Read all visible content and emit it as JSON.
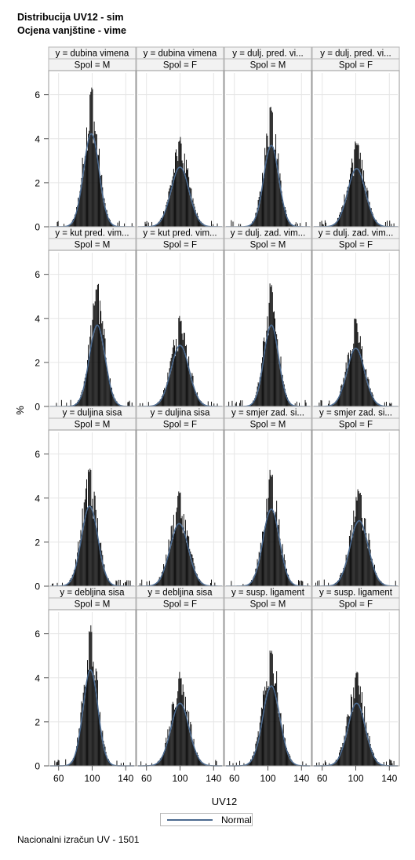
{
  "title": "Distribucija UV12 - sim",
  "subtitle": "Ocjena vanjštine - vime",
  "footnote": "Nacionalni izračun UV - 1501",
  "colors": {
    "bar": "#000000",
    "curve": "#4c6a8f",
    "header_bg": "#f2f2f2",
    "frame": "#9a9a9a",
    "grid": "#e6e6e6"
  },
  "chart_data": {
    "type": "histogram-panel",
    "xlabel": "UV12",
    "ylabel": "%",
    "xlim": [
      50,
      150
    ],
    "ylim": [
      0,
      6.7
    ],
    "xticks": [
      60,
      100,
      140
    ],
    "yticks": [
      0,
      2,
      4,
      6
    ],
    "grid": true,
    "legend": {
      "entries": [
        "Normal"
      ],
      "placement": "bottom"
    },
    "column_headers": [
      "Spol = M",
      "Spol = F",
      "Spol = M",
      "Spol = F"
    ],
    "panels": [
      {
        "row": 0,
        "col": 0,
        "header": "y = dubina vimena",
        "sex": "M",
        "mean": 99,
        "sd": 9.2,
        "peak": 6.4
      },
      {
        "row": 0,
        "col": 1,
        "header": "y = dubina vimena",
        "sex": "F",
        "mean": 100,
        "sd": 10.8,
        "peak": 4.1
      },
      {
        "row": 0,
        "col": 2,
        "header": "y = dulj. pred. vi...",
        "sex": "M",
        "mean": 104,
        "sd": 9.0,
        "peak": 5.6
      },
      {
        "row": 0,
        "col": 3,
        "header": "y = dulj. pred. vi...",
        "sex": "F",
        "mean": 101,
        "sd": 10.6,
        "peak": 4.0
      },
      {
        "row": 1,
        "col": 0,
        "header": "y = kut pred. vim...",
        "sex": "M",
        "mean": 106,
        "sd": 9.4,
        "peak": 5.6
      },
      {
        "row": 1,
        "col": 1,
        "header": "y = kut pred. vim...",
        "sex": "F",
        "mean": 100,
        "sd": 10.8,
        "peak": 4.2
      },
      {
        "row": 1,
        "col": 2,
        "header": "y = dulj. zad. vim...",
        "sex": "M",
        "mean": 104,
        "sd": 8.8,
        "peak": 5.6
      },
      {
        "row": 1,
        "col": 3,
        "header": "y = dulj. zad. vim...",
        "sex": "F",
        "mean": 100,
        "sd": 10.5,
        "peak": 4.0
      },
      {
        "row": 2,
        "col": 0,
        "header": "y = duljina sisa",
        "sex": "M",
        "mean": 97,
        "sd": 9.8,
        "peak": 5.5
      },
      {
        "row": 2,
        "col": 1,
        "header": "y = duljina sisa",
        "sex": "F",
        "mean": 99,
        "sd": 11.0,
        "peak": 4.3
      },
      {
        "row": 2,
        "col": 2,
        "header": "y = smjer zad. si...",
        "sex": "M",
        "mean": 104,
        "sd": 9.8,
        "peak": 5.3
      },
      {
        "row": 2,
        "col": 3,
        "header": "y = smjer zad. si...",
        "sex": "F",
        "mean": 104,
        "sd": 10.9,
        "peak": 4.5
      },
      {
        "row": 3,
        "col": 0,
        "header": "y = debljina sisa",
        "sex": "M",
        "mean": 98,
        "sd": 8.8,
        "peak": 6.6
      },
      {
        "row": 3,
        "col": 1,
        "header": "y = debljina sisa",
        "sex": "F",
        "mean": 100,
        "sd": 10.8,
        "peak": 4.3
      },
      {
        "row": 3,
        "col": 2,
        "header": "y = susp. ligament",
        "sex": "M",
        "mean": 104,
        "sd": 10.2,
        "peak": 5.5
      },
      {
        "row": 3,
        "col": 3,
        "header": "y = susp. ligament",
        "sex": "F",
        "mean": 101,
        "sd": 10.5,
        "peak": 4.3
      }
    ]
  }
}
